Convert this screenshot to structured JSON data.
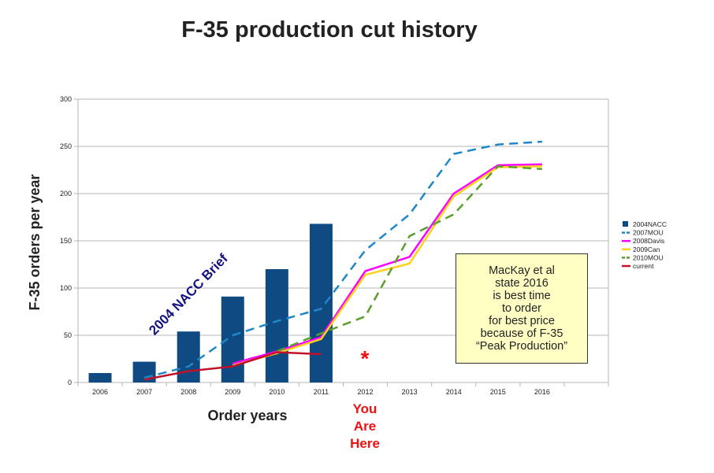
{
  "chart_data": {
    "type": "bar+line",
    "title": "F-35 production cut history",
    "ylabel": "F-35 orders per year",
    "xlabel": "Order years",
    "ylim": [
      0,
      300
    ],
    "yticks": [
      "0",
      "50",
      "100",
      "150",
      "200",
      "250",
      "300"
    ],
    "categories": [
      "2006",
      "2007",
      "2008",
      "2009",
      "2010",
      "2011",
      "2012",
      "2013",
      "2014",
      "2015",
      "2016"
    ],
    "grid": "horizontal",
    "legend_position": "right",
    "bar_series": {
      "name": "2004NACC",
      "color": "#0f4b82",
      "values": [
        10,
        22,
        54,
        91,
        120,
        168,
        null,
        null,
        null,
        null,
        null
      ]
    },
    "line_series": [
      {
        "name": "2007MOU",
        "color": "#1f86c8",
        "dash": "dashed",
        "values": [
          null,
          5,
          17,
          50,
          65,
          78,
          140,
          178,
          242,
          252,
          255
        ]
      },
      {
        "name": "2008Davis",
        "color": "#ff00ff",
        "dash": "solid",
        "values": [
          null,
          null,
          null,
          20,
          33,
          48,
          118,
          133,
          200,
          230,
          231
        ]
      },
      {
        "name": "2009Can",
        "color": "#ffd21a",
        "dash": "solid",
        "values": [
          null,
          null,
          null,
          18,
          31,
          46,
          114,
          126,
          197,
          228,
          229
        ]
      },
      {
        "name": "2010MOU",
        "color": "#5b9e2d",
        "dash": "dashed",
        "values": [
          null,
          null,
          null,
          null,
          33,
          52,
          70,
          155,
          178,
          229,
          226
        ]
      },
      {
        "name": "current",
        "color": "#c2112a",
        "dash": "solid",
        "values": [
          null,
          3,
          12,
          17,
          32,
          30,
          null,
          null,
          null,
          null,
          null
        ]
      }
    ],
    "annotations": {
      "nacc_brief": "2004 NACC Brief",
      "asterisk": "*",
      "you_are_here": [
        "You",
        "Are",
        "Here"
      ],
      "note": "MacKay et al\nstate 2016\nis best time\nto order\nfor best price\nbecause of F-35\n“Peak Production”"
    }
  }
}
